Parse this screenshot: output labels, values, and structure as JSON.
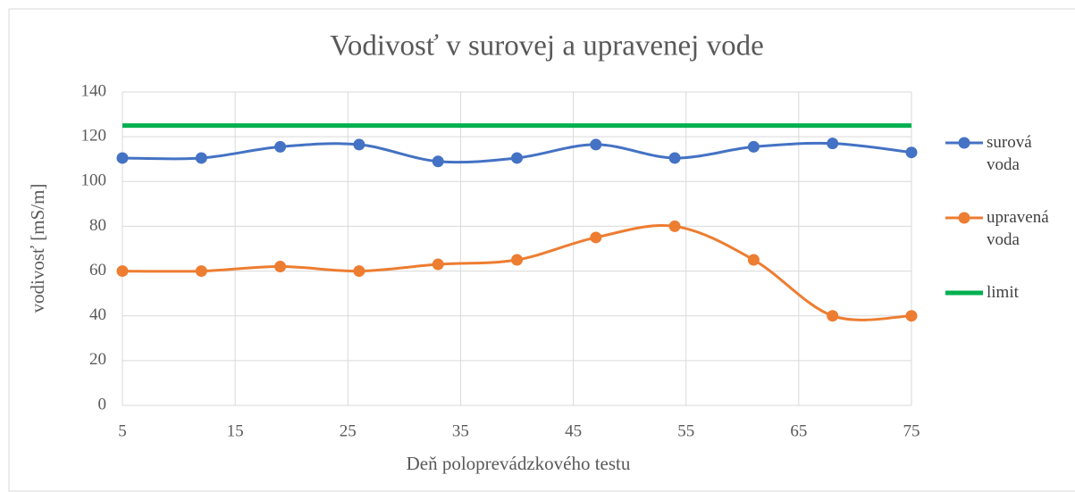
{
  "chart_data": {
    "type": "line",
    "title": "Vodivosť v surovej a upravenej vode",
    "x_label": "Deň poloprevádzkového testu",
    "y_label": "vodivosť [mS/m]",
    "x": [
      5,
      12,
      19,
      26,
      33,
      40,
      47,
      54,
      61,
      68,
      75
    ],
    "series": [
      {
        "name": "surová voda",
        "color": "#4472c4",
        "values": [
          110.5,
          110.5,
          115.5,
          116.5,
          109,
          110.5,
          116.5,
          110.5,
          115.5,
          117,
          113
        ],
        "markers": true,
        "smooth": true
      },
      {
        "name": "upravená voda",
        "color": "#ed7d31",
        "values": [
          60,
          60,
          62,
          60,
          63,
          65,
          75,
          80,
          65,
          40,
          40
        ],
        "markers": true,
        "smooth": true
      },
      {
        "name": "limit",
        "color": "#00b050",
        "values": [
          125,
          125,
          125,
          125,
          125,
          125,
          125,
          125,
          125,
          125,
          125
        ],
        "markers": false,
        "smooth": false
      }
    ],
    "xlim": [
      5,
      75
    ],
    "xticks": [
      5,
      15,
      25,
      35,
      45,
      55,
      65,
      75
    ],
    "ylim": [
      0,
      140
    ],
    "yticks": [
      0,
      20,
      40,
      60,
      80,
      100,
      120,
      140
    ],
    "grid": true,
    "legend": "right"
  }
}
